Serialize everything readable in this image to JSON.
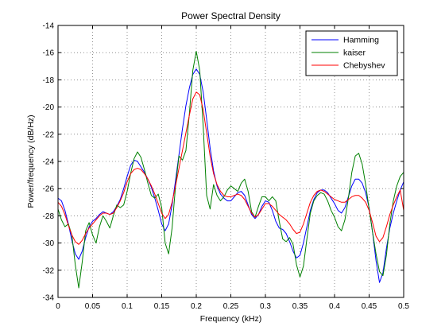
{
  "chart_data": {
    "type": "line",
    "title": "Power Spectral Density",
    "xlabel": "Frequency (kHz)",
    "ylabel": "Power/frequency (dB/Hz)",
    "xlim": [
      0,
      0.5
    ],
    "ylim": [
      -34,
      -14
    ],
    "x_ticks": [
      0,
      0.05,
      0.1,
      0.15,
      0.2,
      0.25,
      0.3,
      0.35,
      0.4,
      0.45,
      0.5
    ],
    "x_tick_labels": [
      "0",
      "0.05",
      "0.1",
      "0.15",
      "0.2",
      "0.25",
      "0.3",
      "0.35",
      "0.4",
      "0.45",
      "0.5"
    ],
    "y_ticks": [
      -34,
      -32,
      -30,
      -28,
      -26,
      -24,
      -22,
      -20,
      -18,
      -16,
      -14
    ],
    "y_tick_labels": [
      "-34",
      "-32",
      "-30",
      "-28",
      "-26",
      "-24",
      "-22",
      "-20",
      "-18",
      "-16",
      "-14"
    ],
    "grid": true,
    "legend_position": "top-right",
    "series": [
      {
        "name": "Hamming",
        "color": "#0000ff",
        "points": [
          [
            0,
            -26.7
          ],
          [
            0.005,
            -26.9
          ],
          [
            0.01,
            -27.6
          ],
          [
            0.015,
            -28.6
          ],
          [
            0.02,
            -29.8
          ],
          [
            0.025,
            -30.8
          ],
          [
            0.03,
            -31.2
          ],
          [
            0.035,
            -30.6
          ],
          [
            0.04,
            -29.6
          ],
          [
            0.045,
            -28.8
          ],
          [
            0.05,
            -28.4
          ],
          [
            0.055,
            -28.2
          ],
          [
            0.06,
            -27.9
          ],
          [
            0.065,
            -27.7
          ],
          [
            0.07,
            -27.8
          ],
          [
            0.075,
            -27.9
          ],
          [
            0.08,
            -27.7
          ],
          [
            0.085,
            -27.3
          ],
          [
            0.09,
            -26.8
          ],
          [
            0.095,
            -26.0
          ],
          [
            0.1,
            -25.1
          ],
          [
            0.105,
            -24.3
          ],
          [
            0.11,
            -23.9
          ],
          [
            0.115,
            -24.0
          ],
          [
            0.12,
            -24.4
          ],
          [
            0.125,
            -24.8
          ],
          [
            0.13,
            -25.3
          ],
          [
            0.135,
            -25.9
          ],
          [
            0.14,
            -26.7
          ],
          [
            0.145,
            -27.6
          ],
          [
            0.15,
            -28.6
          ],
          [
            0.155,
            -29.1
          ],
          [
            0.16,
            -28.6
          ],
          [
            0.165,
            -27.2
          ],
          [
            0.17,
            -25.4
          ],
          [
            0.175,
            -23.5
          ],
          [
            0.18,
            -21.6
          ],
          [
            0.185,
            -19.9
          ],
          [
            0.19,
            -18.6
          ],
          [
            0.195,
            -17.6
          ],
          [
            0.2,
            -17.2
          ],
          [
            0.205,
            -17.6
          ],
          [
            0.21,
            -18.9
          ],
          [
            0.215,
            -20.9
          ],
          [
            0.22,
            -23.0
          ],
          [
            0.225,
            -24.7
          ],
          [
            0.23,
            -25.8
          ],
          [
            0.235,
            -26.4
          ],
          [
            0.24,
            -26.7
          ],
          [
            0.245,
            -26.9
          ],
          [
            0.25,
            -26.9
          ],
          [
            0.255,
            -26.6
          ],
          [
            0.26,
            -26.3
          ],
          [
            0.265,
            -26.2
          ],
          [
            0.27,
            -26.5
          ],
          [
            0.275,
            -27.2
          ],
          [
            0.28,
            -27.9
          ],
          [
            0.285,
            -28.2
          ],
          [
            0.29,
            -27.9
          ],
          [
            0.295,
            -27.3
          ],
          [
            0.3,
            -26.9
          ],
          [
            0.305,
            -27.0
          ],
          [
            0.31,
            -27.6
          ],
          [
            0.315,
            -28.4
          ],
          [
            0.32,
            -28.9
          ],
          [
            0.325,
            -29.0
          ],
          [
            0.33,
            -29.3
          ],
          [
            0.335,
            -29.9
          ],
          [
            0.34,
            -30.6
          ],
          [
            0.345,
            -31.1
          ],
          [
            0.35,
            -30.9
          ],
          [
            0.355,
            -30.0
          ],
          [
            0.36,
            -28.8
          ],
          [
            0.365,
            -27.6
          ],
          [
            0.37,
            -26.8
          ],
          [
            0.375,
            -26.3
          ],
          [
            0.38,
            -26.1
          ],
          [
            0.385,
            -26.1
          ],
          [
            0.39,
            -26.3
          ],
          [
            0.395,
            -26.7
          ],
          [
            0.4,
            -27.1
          ],
          [
            0.405,
            -27.6
          ],
          [
            0.41,
            -27.8
          ],
          [
            0.415,
            -27.4
          ],
          [
            0.42,
            -26.6
          ],
          [
            0.425,
            -25.8
          ],
          [
            0.43,
            -25.3
          ],
          [
            0.435,
            -25.3
          ],
          [
            0.44,
            -25.6
          ],
          [
            0.445,
            -26.3
          ],
          [
            0.45,
            -27.4
          ],
          [
            0.455,
            -29.2
          ],
          [
            0.46,
            -31.3
          ],
          [
            0.465,
            -32.9
          ],
          [
            0.47,
            -32.2
          ],
          [
            0.475,
            -30.4
          ],
          [
            0.48,
            -28.9
          ],
          [
            0.485,
            -27.8
          ],
          [
            0.49,
            -26.9
          ],
          [
            0.495,
            -26.1
          ],
          [
            0.5,
            -25.5
          ]
        ]
      },
      {
        "name": "kaiser",
        "color": "#008000",
        "points": [
          [
            0,
            -27.5
          ],
          [
            0.005,
            -28.3
          ],
          [
            0.01,
            -28.8
          ],
          [
            0.015,
            -28.6
          ],
          [
            0.02,
            -29.4
          ],
          [
            0.025,
            -31.6
          ],
          [
            0.03,
            -33.3
          ],
          [
            0.035,
            -31.4
          ],
          [
            0.04,
            -29.1
          ],
          [
            0.045,
            -28.5
          ],
          [
            0.05,
            -29.4
          ],
          [
            0.055,
            -30.0
          ],
          [
            0.06,
            -28.8
          ],
          [
            0.065,
            -28.0
          ],
          [
            0.07,
            -28.4
          ],
          [
            0.075,
            -28.9
          ],
          [
            0.08,
            -28.0
          ],
          [
            0.085,
            -27.2
          ],
          [
            0.09,
            -27.4
          ],
          [
            0.095,
            -27.2
          ],
          [
            0.1,
            -26.2
          ],
          [
            0.105,
            -24.9
          ],
          [
            0.11,
            -23.8
          ],
          [
            0.115,
            -23.3
          ],
          [
            0.12,
            -23.7
          ],
          [
            0.125,
            -24.6
          ],
          [
            0.13,
            -25.6
          ],
          [
            0.135,
            -26.5
          ],
          [
            0.14,
            -26.7
          ],
          [
            0.145,
            -26.4
          ],
          [
            0.15,
            -27.4
          ],
          [
            0.155,
            -30.0
          ],
          [
            0.16,
            -30.8
          ],
          [
            0.165,
            -28.9
          ],
          [
            0.17,
            -25.8
          ],
          [
            0.175,
            -23.6
          ],
          [
            0.18,
            -23.9
          ],
          [
            0.185,
            -23.2
          ],
          [
            0.19,
            -20.5
          ],
          [
            0.195,
            -17.3
          ],
          [
            0.2,
            -15.9
          ],
          [
            0.205,
            -17.3
          ],
          [
            0.21,
            -21.4
          ],
          [
            0.215,
            -26.5
          ],
          [
            0.22,
            -27.5
          ],
          [
            0.225,
            -25.7
          ],
          [
            0.23,
            -26.5
          ],
          [
            0.235,
            -26.9
          ],
          [
            0.24,
            -26.6
          ],
          [
            0.245,
            -26.1
          ],
          [
            0.25,
            -25.8
          ],
          [
            0.255,
            -26.0
          ],
          [
            0.26,
            -26.2
          ],
          [
            0.265,
            -25.6
          ],
          [
            0.27,
            -25.3
          ],
          [
            0.275,
            -26.2
          ],
          [
            0.28,
            -27.7
          ],
          [
            0.285,
            -28.1
          ],
          [
            0.29,
            -27.3
          ],
          [
            0.295,
            -26.6
          ],
          [
            0.3,
            -26.6
          ],
          [
            0.305,
            -26.9
          ],
          [
            0.31,
            -26.6
          ],
          [
            0.315,
            -26.9
          ],
          [
            0.32,
            -28.4
          ],
          [
            0.325,
            -29.7
          ],
          [
            0.33,
            -29.9
          ],
          [
            0.335,
            -29.6
          ],
          [
            0.34,
            -30.1
          ],
          [
            0.345,
            -31.6
          ],
          [
            0.35,
            -32.5
          ],
          [
            0.355,
            -31.7
          ],
          [
            0.36,
            -29.7
          ],
          [
            0.365,
            -27.8
          ],
          [
            0.37,
            -26.9
          ],
          [
            0.375,
            -26.5
          ],
          [
            0.38,
            -26.3
          ],
          [
            0.385,
            -26.4
          ],
          [
            0.39,
            -26.9
          ],
          [
            0.395,
            -27.6
          ],
          [
            0.4,
            -28.1
          ],
          [
            0.405,
            -28.8
          ],
          [
            0.41,
            -29.1
          ],
          [
            0.415,
            -28.3
          ],
          [
            0.42,
            -26.7
          ],
          [
            0.425,
            -24.8
          ],
          [
            0.43,
            -23.6
          ],
          [
            0.435,
            -23.4
          ],
          [
            0.44,
            -24.2
          ],
          [
            0.445,
            -25.7
          ],
          [
            0.45,
            -27.5
          ],
          [
            0.455,
            -29.2
          ],
          [
            0.46,
            -30.8
          ],
          [
            0.465,
            -32.1
          ],
          [
            0.47,
            -32.4
          ],
          [
            0.475,
            -30.9
          ],
          [
            0.48,
            -28.6
          ],
          [
            0.485,
            -26.9
          ],
          [
            0.49,
            -25.8
          ],
          [
            0.495,
            -25.1
          ],
          [
            0.5,
            -24.8
          ]
        ]
      },
      {
        "name": "Chebyshev",
        "color": "#ff0000",
        "points": [
          [
            0,
            -27.0
          ],
          [
            0.005,
            -27.3
          ],
          [
            0.01,
            -27.9
          ],
          [
            0.015,
            -28.7
          ],
          [
            0.02,
            -29.4
          ],
          [
            0.025,
            -29.9
          ],
          [
            0.03,
            -30.1
          ],
          [
            0.035,
            -29.8
          ],
          [
            0.04,
            -29.3
          ],
          [
            0.045,
            -28.9
          ],
          [
            0.05,
            -28.6
          ],
          [
            0.055,
            -28.3
          ],
          [
            0.06,
            -28.0
          ],
          [
            0.065,
            -27.8
          ],
          [
            0.07,
            -27.8
          ],
          [
            0.075,
            -27.9
          ],
          [
            0.08,
            -27.8
          ],
          [
            0.085,
            -27.4
          ],
          [
            0.09,
            -26.9
          ],
          [
            0.095,
            -26.3
          ],
          [
            0.1,
            -25.5
          ],
          [
            0.105,
            -24.9
          ],
          [
            0.11,
            -24.6
          ],
          [
            0.115,
            -24.5
          ],
          [
            0.12,
            -24.6
          ],
          [
            0.125,
            -24.9
          ],
          [
            0.13,
            -25.3
          ],
          [
            0.135,
            -25.8
          ],
          [
            0.14,
            -26.4
          ],
          [
            0.145,
            -27.1
          ],
          [
            0.15,
            -27.8
          ],
          [
            0.155,
            -28.2
          ],
          [
            0.16,
            -27.9
          ],
          [
            0.165,
            -27.0
          ],
          [
            0.17,
            -25.8
          ],
          [
            0.175,
            -24.5
          ],
          [
            0.18,
            -23.2
          ],
          [
            0.185,
            -21.9
          ],
          [
            0.19,
            -20.6
          ],
          [
            0.195,
            -19.4
          ],
          [
            0.2,
            -18.9
          ],
          [
            0.205,
            -19.1
          ],
          [
            0.21,
            -20.2
          ],
          [
            0.215,
            -21.9
          ],
          [
            0.22,
            -23.6
          ],
          [
            0.225,
            -24.9
          ],
          [
            0.23,
            -25.7
          ],
          [
            0.235,
            -26.2
          ],
          [
            0.24,
            -26.5
          ],
          [
            0.245,
            -26.6
          ],
          [
            0.25,
            -26.6
          ],
          [
            0.255,
            -26.5
          ],
          [
            0.26,
            -26.4
          ],
          [
            0.265,
            -26.5
          ],
          [
            0.27,
            -26.8
          ],
          [
            0.275,
            -27.3
          ],
          [
            0.28,
            -27.8
          ],
          [
            0.285,
            -28.1
          ],
          [
            0.29,
            -27.9
          ],
          [
            0.295,
            -27.5
          ],
          [
            0.3,
            -27.1
          ],
          [
            0.305,
            -27.1
          ],
          [
            0.31,
            -27.3
          ],
          [
            0.315,
            -27.6
          ],
          [
            0.32,
            -27.9
          ],
          [
            0.325,
            -28.1
          ],
          [
            0.33,
            -28.3
          ],
          [
            0.335,
            -28.6
          ],
          [
            0.34,
            -29.0
          ],
          [
            0.345,
            -29.3
          ],
          [
            0.35,
            -29.2
          ],
          [
            0.355,
            -28.6
          ],
          [
            0.36,
            -27.8
          ],
          [
            0.365,
            -27.0
          ],
          [
            0.37,
            -26.5
          ],
          [
            0.375,
            -26.2
          ],
          [
            0.38,
            -26.1
          ],
          [
            0.385,
            -26.2
          ],
          [
            0.39,
            -26.4
          ],
          [
            0.395,
            -26.6
          ],
          [
            0.4,
            -26.8
          ],
          [
            0.405,
            -26.9
          ],
          [
            0.41,
            -27.0
          ],
          [
            0.415,
            -27.0
          ],
          [
            0.42,
            -26.8
          ],
          [
            0.425,
            -26.6
          ],
          [
            0.43,
            -26.5
          ],
          [
            0.435,
            -26.5
          ],
          [
            0.44,
            -26.7
          ],
          [
            0.445,
            -27.0
          ],
          [
            0.45,
            -27.6
          ],
          [
            0.455,
            -28.5
          ],
          [
            0.46,
            -29.5
          ],
          [
            0.465,
            -29.9
          ],
          [
            0.47,
            -29.6
          ],
          [
            0.475,
            -28.8
          ],
          [
            0.48,
            -27.9
          ],
          [
            0.485,
            -27.2
          ],
          [
            0.49,
            -26.6
          ],
          [
            0.495,
            -26.1
          ],
          [
            0.5,
            -27.6
          ]
        ]
      }
    ]
  }
}
